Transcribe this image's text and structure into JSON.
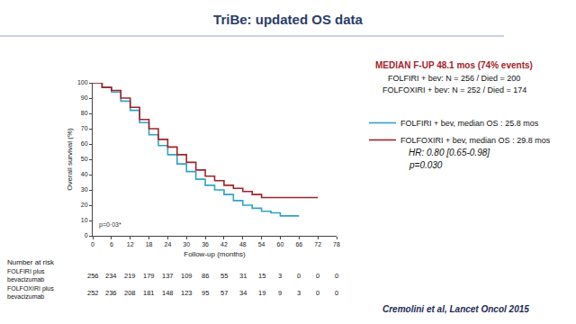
{
  "chart_data": {
    "type": "line",
    "line_style": "step",
    "title": "TriBe: updated OS data",
    "x_label": "Follow-up (months)",
    "y_label": "Overall survival (%)",
    "xlim": [
      0,
      78
    ],
    "xticks": [
      0,
      6,
      12,
      18,
      24,
      30,
      36,
      42,
      48,
      54,
      60,
      66,
      72,
      78
    ],
    "ylim": [
      0,
      100
    ],
    "yticks": [
      0,
      10,
      20,
      30,
      40,
      50,
      60,
      70,
      80,
      90,
      100
    ],
    "grid": false,
    "legend": "upper right",
    "series": [
      {
        "name": "FOLFIRI + bev, median OS : 25.8 mos",
        "color": "#2fa3c6",
        "x": [
          0,
          3,
          6,
          9,
          12,
          15,
          18,
          21,
          24,
          27,
          30,
          33,
          36,
          39,
          42,
          45,
          48,
          51,
          54,
          57,
          60,
          63,
          66
        ],
        "values": [
          100,
          97,
          94,
          88,
          82,
          74,
          66,
          59,
          53,
          47,
          42,
          37,
          33,
          30,
          27,
          23,
          20,
          18,
          16,
          15,
          13,
          13,
          13
        ]
      },
      {
        "name": "FOLFOXIRI + bev, median OS : 29.8 mos",
        "color": "#a3232b",
        "x": [
          0,
          3,
          6,
          9,
          12,
          15,
          18,
          21,
          24,
          27,
          30,
          33,
          36,
          39,
          42,
          45,
          48,
          51,
          54,
          57,
          60,
          66,
          72
        ],
        "values": [
          100,
          97,
          95,
          90,
          84,
          76,
          70,
          63,
          58,
          53,
          48,
          43,
          39,
          36,
          33,
          31,
          29,
          27,
          25,
          25,
          25,
          25,
          25
        ]
      }
    ],
    "summary": {
      "heading": "MEDIAN F-UP 48.1 mos (74% events)",
      "lines": [
        "FOLFIRI + bev: N = 256 / Died = 200",
        "FOLFOXIRI + bev: N = 252 / Died = 174"
      ]
    },
    "hr_text": "HR: 0.80 [0.65-0.98]",
    "p_text": "p=0.030",
    "plot_p_text": "p=0·03*",
    "number_at_risk": {
      "title": "Number at risk",
      "x": [
        0,
        6,
        12,
        18,
        24,
        30,
        36,
        42,
        48,
        54,
        60,
        66,
        72,
        78
      ],
      "rows": [
        {
          "label": [
            "FOLFIRI plus",
            "bevacizumab"
          ],
          "values": [
            256,
            234,
            219,
            179,
            137,
            109,
            86,
            55,
            31,
            15,
            3,
            0,
            0,
            0
          ]
        },
        {
          "label": [
            "FOLFOXIRI plus",
            "bevacizumab"
          ],
          "values": [
            252,
            236,
            208,
            181,
            148,
            123,
            95,
            57,
            34,
            19,
            9,
            3,
            0,
            0
          ]
        }
      ]
    },
    "source": "Cremolini et al, Lancet Oncol 2015"
  }
}
